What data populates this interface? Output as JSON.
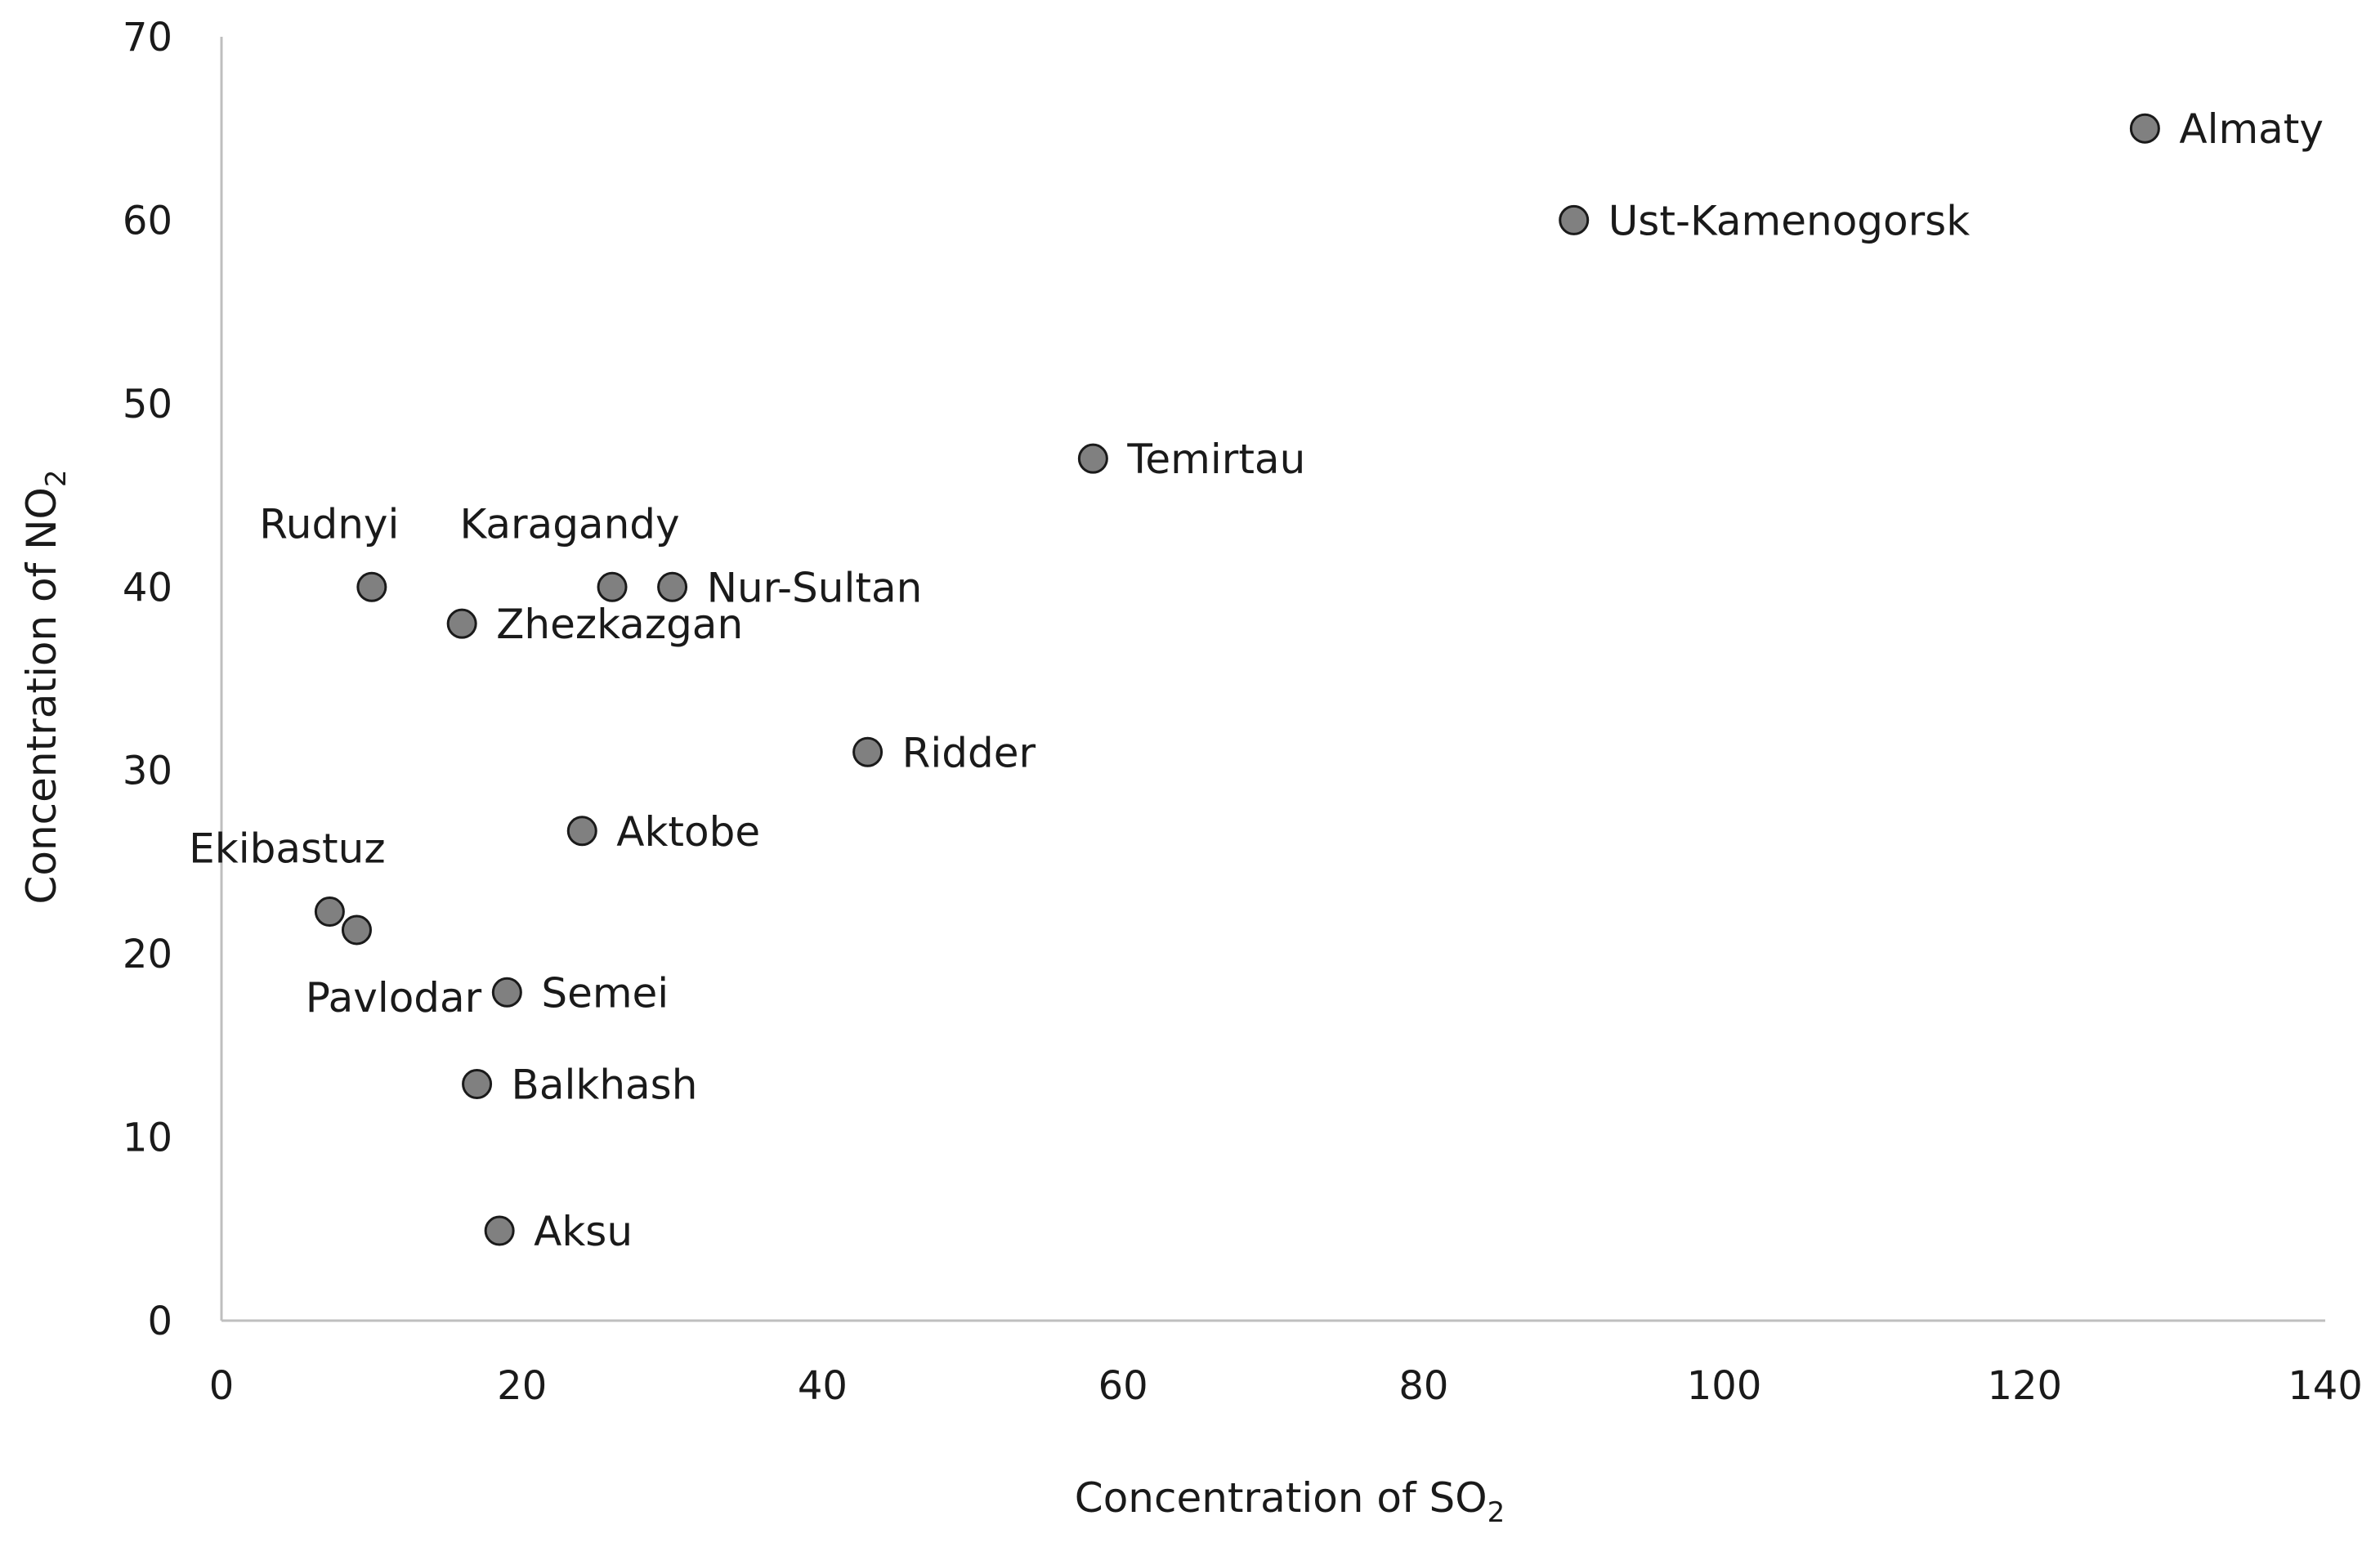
{
  "chart_data": {
    "type": "scatter",
    "title": "",
    "xlabel": {
      "main": "Concentration of SO",
      "sub": "2"
    },
    "ylabel": {
      "main": "Concentration of NO",
      "sub": "2"
    },
    "xlim": [
      0,
      140
    ],
    "ylim": [
      0,
      70
    ],
    "xticks": [
      0,
      20,
      40,
      60,
      80,
      100,
      120,
      140
    ],
    "yticks": [
      0,
      10,
      20,
      30,
      40,
      50,
      60,
      70
    ],
    "grid": false,
    "legend": "none",
    "marker_color": "#808080",
    "marker_edge_color": "#1a1a1a",
    "axis_color": "#bfbfbf",
    "text_color": "#1a1a1a",
    "points": [
      {
        "label": "Almaty",
        "x": 128,
        "y": 65,
        "label_anchor": "right"
      },
      {
        "label": "Ust-Kamenogorsk",
        "x": 90,
        "y": 60,
        "label_anchor": "right"
      },
      {
        "label": "Temirtau",
        "x": 58,
        "y": 47,
        "label_anchor": "right"
      },
      {
        "label": "Karagandy",
        "x": 26,
        "y": 40,
        "label_anchor": "above"
      },
      {
        "label": "Nur-Sultan",
        "x": 30,
        "y": 40,
        "label_anchor": "right"
      },
      {
        "label": "Rudnyi",
        "x": 10,
        "y": 40,
        "label_anchor": "above"
      },
      {
        "label": "Zhezkazgan",
        "x": 16,
        "y": 38,
        "label_anchor": "right"
      },
      {
        "label": "Ridder",
        "x": 43,
        "y": 31,
        "label_anchor": "right"
      },
      {
        "label": "Aktobe",
        "x": 24,
        "y": 26.7,
        "label_anchor": "right"
      },
      {
        "label": "Ekibastuz",
        "x": 7.2,
        "y": 22.3,
        "label_anchor": "above"
      },
      {
        "label": "Pavlodar",
        "x": 9,
        "y": 21.3,
        "label_anchor": "below"
      },
      {
        "label": "Semei",
        "x": 19,
        "y": 17.9,
        "label_anchor": "right"
      },
      {
        "label": "Balkhash",
        "x": 17,
        "y": 12.9,
        "label_anchor": "right"
      },
      {
        "label": "Aksu",
        "x": 18.5,
        "y": 4.9,
        "label_anchor": "right"
      }
    ]
  }
}
